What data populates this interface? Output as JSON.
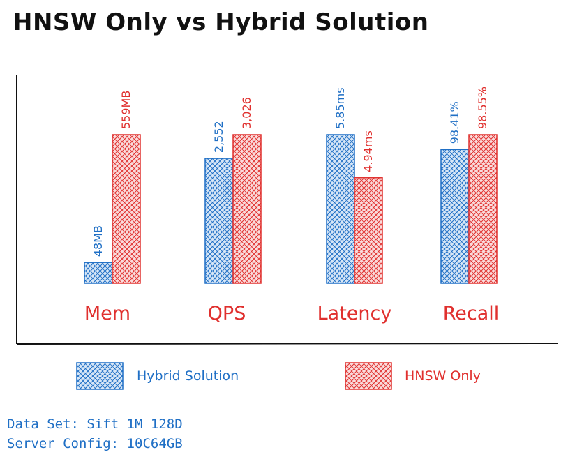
{
  "title": "HNSW Only vs Hybrid Solution",
  "colors": {
    "hybrid": "#1f6fc5",
    "hnsw": "#e0302e",
    "ink": "#111111"
  },
  "chart_data": {
    "type": "bar",
    "categories": [
      "Mem",
      "QPS",
      "Latency",
      "Recall"
    ],
    "series": [
      {
        "name": "Hybrid Solution",
        "color": "#1f6fc5",
        "labels": [
          "48MB",
          "2,552",
          "5.85ms",
          "98.41%"
        ],
        "values": [
          48,
          2552,
          5.85,
          98.41
        ]
      },
      {
        "name": "HNSW Only",
        "color": "#e0302e",
        "labels": [
          "559MB",
          "3,026",
          "4.94ms",
          "98.55%"
        ],
        "values": [
          559,
          3026,
          4.94,
          98.55
        ]
      }
    ],
    "relative_heights": [
      [
        0.14,
        1.0
      ],
      [
        0.84,
        1.0
      ],
      [
        1.0,
        0.71
      ],
      [
        0.9,
        1.0
      ]
    ],
    "legend_position": "bottom",
    "grid": false
  },
  "footer": {
    "dataset": "Data Set: Sift 1M 128D",
    "server": "Server Config: 10C64GB"
  }
}
